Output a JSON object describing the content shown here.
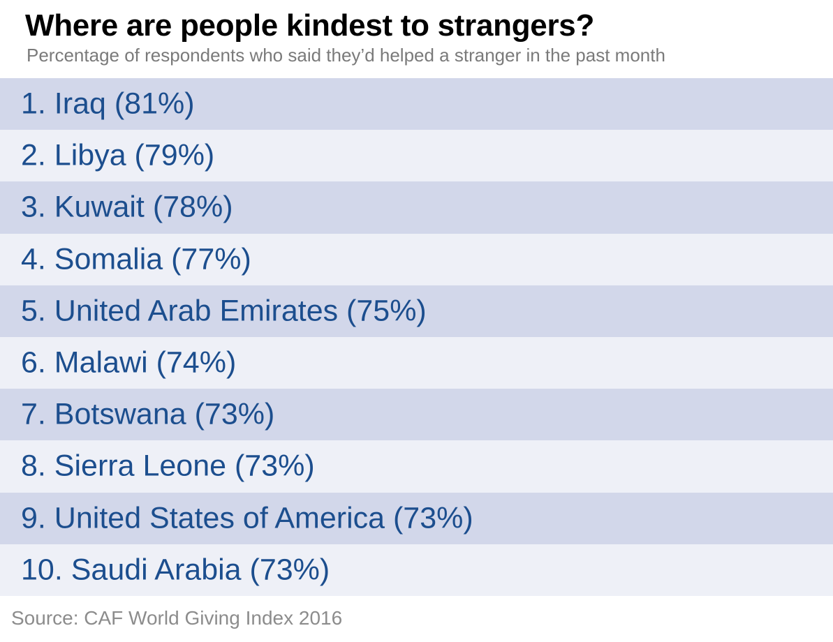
{
  "title": "Where are people kindest to strangers?",
  "subtitle": "Percentage of respondents who said they’d helped a stranger in the past month",
  "source": "Source: CAF World Giving Index 2016",
  "colors": {
    "row_dark": "#d2d7ea",
    "row_light": "#eef0f7",
    "label_text": "#1c4e8e",
    "title_text": "#000000",
    "subtitle_text": "#7a7a7a"
  },
  "rows": [
    {
      "label": "1. Iraq (81%)"
    },
    {
      "label": "2. Libya (79%)"
    },
    {
      "label": "3. Kuwait (78%)"
    },
    {
      "label": "4. Somalia (77%)"
    },
    {
      "label": "5. United Arab Emirates (75%)"
    },
    {
      "label": "6. Malawi (74%)"
    },
    {
      "label": "7. Botswana (73%)"
    },
    {
      "label": "8. Sierra Leone (73%)"
    },
    {
      "label": "9. United States of America (73%)"
    },
    {
      "label": "10. Saudi Arabia (73%)"
    }
  ],
  "chart_data": {
    "type": "table",
    "title": "Where are people kindest to strangers?",
    "subtitle": "Percentage of respondents who said they’d helped a stranger in the past month",
    "categories": [
      "Iraq",
      "Libya",
      "Kuwait",
      "Somalia",
      "United Arab Emirates",
      "Malawi",
      "Botswana",
      "Sierra Leone",
      "United States of America",
      "Saudi Arabia"
    ],
    "ranks": [
      1,
      2,
      3,
      4,
      5,
      6,
      7,
      8,
      9,
      10
    ],
    "values": [
      81,
      79,
      78,
      77,
      75,
      74,
      73,
      73,
      73,
      73
    ],
    "unit": "%",
    "source": "Source: CAF World Giving Index 2016"
  }
}
